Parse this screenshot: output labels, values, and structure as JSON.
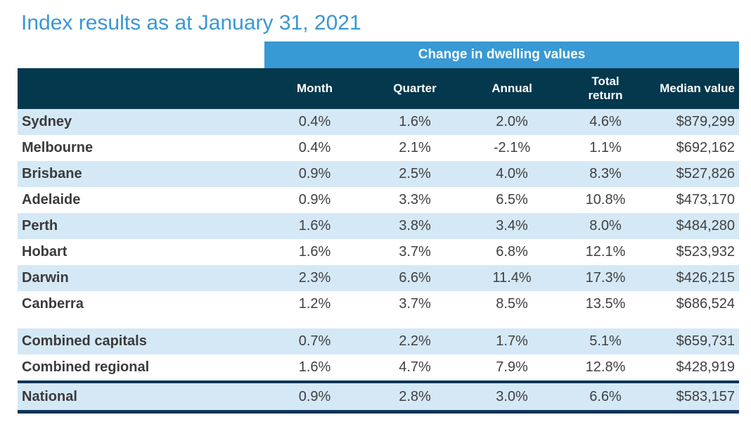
{
  "chart_data": {
    "type": "table",
    "title": "Index results as at January 31, 2021",
    "band_label": "Change in dwelling values",
    "columns": [
      "Month",
      "Quarter",
      "Annual",
      "Total\nreturn",
      "Median value"
    ],
    "rows": [
      {
        "name": "Sydney",
        "values": [
          "0.4%",
          "1.6%",
          "2.0%",
          "4.6%",
          "$879,299"
        ],
        "shaded": true,
        "spacer_before": false,
        "national": false
      },
      {
        "name": "Melbourne",
        "values": [
          "0.4%",
          "2.1%",
          "-2.1%",
          "1.1%",
          "$692,162"
        ],
        "shaded": false,
        "spacer_before": false,
        "national": false
      },
      {
        "name": "Brisbane",
        "values": [
          "0.9%",
          "2.5%",
          "4.0%",
          "8.3%",
          "$527,826"
        ],
        "shaded": true,
        "spacer_before": false,
        "national": false
      },
      {
        "name": "Adelaide",
        "values": [
          "0.9%",
          "3.3%",
          "6.5%",
          "10.8%",
          "$473,170"
        ],
        "shaded": false,
        "spacer_before": false,
        "national": false
      },
      {
        "name": "Perth",
        "values": [
          "1.6%",
          "3.8%",
          "3.4%",
          "8.0%",
          "$484,280"
        ],
        "shaded": true,
        "spacer_before": false,
        "national": false
      },
      {
        "name": "Hobart",
        "values": [
          "1.6%",
          "3.7%",
          "6.8%",
          "12.1%",
          "$523,932"
        ],
        "shaded": false,
        "spacer_before": false,
        "national": false
      },
      {
        "name": "Darwin",
        "values": [
          "2.3%",
          "6.6%",
          "11.4%",
          "17.3%",
          "$426,215"
        ],
        "shaded": true,
        "spacer_before": false,
        "national": false
      },
      {
        "name": "Canberra",
        "values": [
          "1.2%",
          "3.7%",
          "8.5%",
          "13.5%",
          "$686,524"
        ],
        "shaded": false,
        "spacer_before": false,
        "national": false
      },
      {
        "name": "Combined capitals",
        "values": [
          "0.7%",
          "2.2%",
          "1.7%",
          "5.1%",
          "$659,731"
        ],
        "shaded": true,
        "spacer_before": true,
        "national": false
      },
      {
        "name": "Combined regional",
        "values": [
          "1.6%",
          "4.7%",
          "7.9%",
          "12.8%",
          "$428,919"
        ],
        "shaded": false,
        "spacer_before": false,
        "national": false
      },
      {
        "name": "National",
        "values": [
          "0.9%",
          "2.8%",
          "3.0%",
          "6.6%",
          "$583,157"
        ],
        "shaded": true,
        "spacer_before": false,
        "national": true
      }
    ]
  },
  "colors": {
    "title_blue": "#3a97d3",
    "band_blue": "#3899d4",
    "header_teal": "#04384d",
    "row_blue": "#d5e8f6",
    "border_navy": "#0d3459",
    "text_dark": "#404040"
  }
}
